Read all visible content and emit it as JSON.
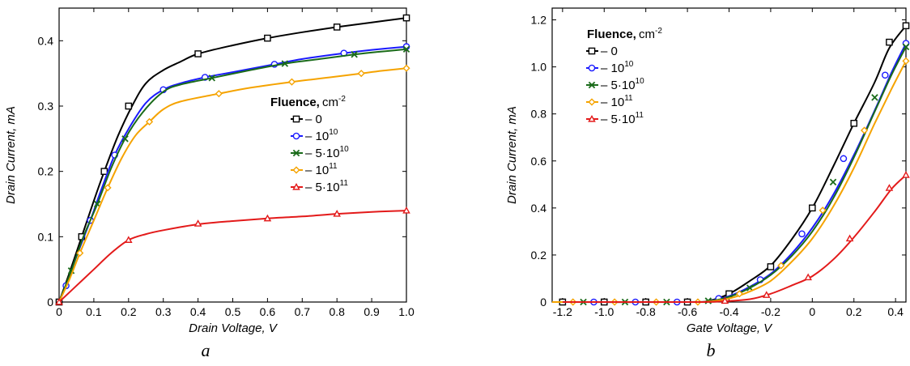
{
  "legend": {
    "title": "Fluence,",
    "unit": "cm",
    "unit_sup": "-2",
    "entries": [
      {
        "base": "– 0",
        "sup": "",
        "color": "#000000",
        "marker": "square"
      },
      {
        "base": "– 10",
        "sup": "10",
        "color": "#1a1aff",
        "marker": "circle"
      },
      {
        "base": "– 5·10",
        "sup": "10",
        "color": "#1a6b1a",
        "marker": "cross"
      },
      {
        "base": "– 10",
        "sup": "11",
        "color": "#f5a300",
        "marker": "diamond"
      },
      {
        "base": "– 5·10",
        "sup": "11",
        "color": "#e31a1a",
        "marker": "triangle"
      }
    ]
  },
  "chart_data": [
    {
      "type": "line",
      "panel_label": "a",
      "xlabel": "Drain Voltage, V",
      "ylabel": "Drain Current, mA",
      "xlim": [
        0,
        1.0
      ],
      "ylim": [
        0,
        0.45
      ],
      "xticks": [
        0,
        0.1,
        0.2,
        0.3,
        0.4,
        0.5,
        0.6,
        0.7,
        0.8,
        0.9,
        1.0
      ],
      "xtick_labels": [
        "0",
        "0.1",
        "0.2",
        "0.3",
        "0.4",
        "0.5",
        "0.6",
        "0.7",
        "0.8",
        "0.9",
        "1.0"
      ],
      "yticks": [
        0,
        0.1,
        0.2,
        0.3,
        0.4
      ],
      "ytick_labels": [
        "0",
        "0.1",
        "0.2",
        "0.3",
        "0.4"
      ],
      "legend_position": "right-middle",
      "series": [
        {
          "color": "#000000",
          "marker": "square",
          "curve": [
            [
              0,
              0
            ],
            [
              0.03,
              0.045
            ],
            [
              0.065,
              0.1
            ],
            [
              0.1,
              0.155
            ],
            [
              0.13,
              0.2
            ],
            [
              0.17,
              0.255
            ],
            [
              0.21,
              0.3
            ],
            [
              0.25,
              0.335
            ],
            [
              0.3,
              0.355
            ],
            [
              0.35,
              0.368
            ],
            [
              0.4,
              0.38
            ],
            [
              0.5,
              0.393
            ],
            [
              0.6,
              0.404
            ],
            [
              0.7,
              0.413
            ],
            [
              0.8,
              0.421
            ],
            [
              0.9,
              0.428
            ],
            [
              1.0,
              0.435
            ]
          ],
          "markers": [
            [
              0,
              0
            ],
            [
              0.065,
              0.1
            ],
            [
              0.13,
              0.2
            ],
            [
              0.2,
              0.3
            ],
            [
              0.4,
              0.38
            ],
            [
              0.6,
              0.404
            ],
            [
              0.8,
              0.421
            ],
            [
              1.0,
              0.435
            ]
          ]
        },
        {
          "color": "#1a1aff",
          "marker": "circle",
          "curve": [
            [
              0,
              0
            ],
            [
              0.02,
              0.025
            ],
            [
              0.05,
              0.07
            ],
            [
              0.09,
              0.125
            ],
            [
              0.12,
              0.17
            ],
            [
              0.16,
              0.225
            ],
            [
              0.2,
              0.265
            ],
            [
              0.25,
              0.305
            ],
            [
              0.3,
              0.325
            ],
            [
              0.35,
              0.335
            ],
            [
              0.42,
              0.344
            ],
            [
              0.5,
              0.352
            ],
            [
              0.62,
              0.364
            ],
            [
              0.7,
              0.372
            ],
            [
              0.82,
              0.381
            ],
            [
              0.9,
              0.386
            ],
            [
              1.0,
              0.391
            ]
          ],
          "markers": [
            [
              0.02,
              0.025
            ],
            [
              0.09,
              0.125
            ],
            [
              0.16,
              0.225
            ],
            [
              0.3,
              0.325
            ],
            [
              0.42,
              0.344
            ],
            [
              0.62,
              0.364
            ],
            [
              0.82,
              0.381
            ],
            [
              1.0,
              0.391
            ]
          ]
        },
        {
          "color": "#1a6b1a",
          "marker": "cross",
          "curve": [
            [
              0,
              0
            ],
            [
              0.035,
              0.048
            ],
            [
              0.07,
              0.1
            ],
            [
              0.11,
              0.15
            ],
            [
              0.15,
              0.205
            ],
            [
              0.19,
              0.25
            ],
            [
              0.24,
              0.29
            ],
            [
              0.3,
              0.322
            ],
            [
              0.35,
              0.333
            ],
            [
              0.44,
              0.343
            ],
            [
              0.55,
              0.355
            ],
            [
              0.65,
              0.365
            ],
            [
              0.75,
              0.372
            ],
            [
              0.85,
              0.379
            ],
            [
              0.92,
              0.383
            ],
            [
              1.0,
              0.387
            ]
          ],
          "markers": [
            [
              0.035,
              0.048
            ],
            [
              0.11,
              0.15
            ],
            [
              0.19,
              0.25
            ],
            [
              0.44,
              0.343
            ],
            [
              0.65,
              0.365
            ],
            [
              0.85,
              0.379
            ],
            [
              1.0,
              0.387
            ]
          ]
        },
        {
          "color": "#f5a300",
          "marker": "diamond",
          "curve": [
            [
              0,
              0
            ],
            [
              0.03,
              0.035
            ],
            [
              0.06,
              0.075
            ],
            [
              0.1,
              0.125
            ],
            [
              0.14,
              0.175
            ],
            [
              0.18,
              0.22
            ],
            [
              0.22,
              0.255
            ],
            [
              0.26,
              0.276
            ],
            [
              0.3,
              0.295
            ],
            [
              0.35,
              0.307
            ],
            [
              0.46,
              0.319
            ],
            [
              0.55,
              0.328
            ],
            [
              0.67,
              0.337
            ],
            [
              0.78,
              0.344
            ],
            [
              0.87,
              0.35
            ],
            [
              0.93,
              0.354
            ],
            [
              1.0,
              0.358
            ]
          ],
          "markers": [
            [
              0.06,
              0.075
            ],
            [
              0.14,
              0.175
            ],
            [
              0.26,
              0.276
            ],
            [
              0.46,
              0.319
            ],
            [
              0.67,
              0.337
            ],
            [
              0.87,
              0.35
            ],
            [
              1.0,
              0.358
            ]
          ]
        },
        {
          "color": "#e31a1a",
          "marker": "triangle",
          "curve": [
            [
              0,
              0
            ],
            [
              0.05,
              0.025
            ],
            [
              0.1,
              0.05
            ],
            [
              0.15,
              0.075
            ],
            [
              0.2,
              0.095
            ],
            [
              0.25,
              0.104
            ],
            [
              0.3,
              0.11
            ],
            [
              0.4,
              0.119
            ],
            [
              0.5,
              0.124
            ],
            [
              0.6,
              0.128
            ],
            [
              0.7,
              0.131
            ],
            [
              0.8,
              0.135
            ],
            [
              0.9,
              0.138
            ],
            [
              1.0,
              0.14
            ]
          ],
          "markers": [
            [
              0,
              0
            ],
            [
              0.2,
              0.095
            ],
            [
              0.4,
              0.12
            ],
            [
              0.6,
              0.128
            ],
            [
              0.8,
              0.135
            ],
            [
              1.0,
              0.14
            ]
          ]
        }
      ]
    },
    {
      "type": "line",
      "panel_label": "b",
      "xlabel": "Gate Voltage, V",
      "ylabel": "Drain Current, mA",
      "xlim": [
        -1.25,
        0.45
      ],
      "ylim": [
        0,
        1.25
      ],
      "xticks": [
        -1.2,
        -1.0,
        -0.8,
        -0.6,
        -0.4,
        -0.2,
        0,
        0.2,
        0.4
      ],
      "xtick_labels": [
        "-1.2",
        "-1.0",
        "-0.8",
        "-0.6",
        "-0.4",
        "-0.2",
        "0",
        "0.2",
        "0.4"
      ],
      "yticks": [
        0,
        0.2,
        0.4,
        0.6,
        0.8,
        1.0,
        1.2
      ],
      "ytick_labels": [
        "0",
        "0.2",
        "0.4",
        "0.6",
        "0.8",
        "1.0",
        "1.2"
      ],
      "legend_position": "top-left",
      "series": [
        {
          "color": "#000000",
          "marker": "square",
          "curve": [
            [
              -1.2,
              0
            ],
            [
              -0.6,
              0
            ],
            [
              -0.5,
              0.005
            ],
            [
              -0.4,
              0.035
            ],
            [
              -0.3,
              0.09
            ],
            [
              -0.2,
              0.155
            ],
            [
              -0.1,
              0.265
            ],
            [
              0,
              0.4
            ],
            [
              0.1,
              0.575
            ],
            [
              0.2,
              0.76
            ],
            [
              0.3,
              0.935
            ],
            [
              0.37,
              1.08
            ],
            [
              0.45,
              1.175
            ]
          ],
          "markers": [
            [
              -1.2,
              0
            ],
            [
              -1.0,
              0
            ],
            [
              -0.8,
              0
            ],
            [
              -0.6,
              0
            ],
            [
              -0.4,
              0.035
            ],
            [
              -0.2,
              0.15
            ],
            [
              0,
              0.4
            ],
            [
              0.2,
              0.76
            ],
            [
              0.37,
              1.105
            ],
            [
              0.45,
              1.175
            ]
          ]
        },
        {
          "color": "#1a1aff",
          "marker": "circle",
          "curve": [
            [
              -1.25,
              0
            ],
            [
              -0.6,
              0
            ],
            [
              -0.5,
              0.003
            ],
            [
              -0.4,
              0.025
            ],
            [
              -0.3,
              0.065
            ],
            [
              -0.2,
              0.12
            ],
            [
              -0.1,
              0.205
            ],
            [
              0,
              0.315
            ],
            [
              0.1,
              0.455
            ],
            [
              0.2,
              0.625
            ],
            [
              0.3,
              0.815
            ],
            [
              0.38,
              0.975
            ],
            [
              0.45,
              1.1
            ]
          ],
          "markers": [
            [
              -1.05,
              0
            ],
            [
              -0.85,
              0
            ],
            [
              -0.65,
              0
            ],
            [
              -0.45,
              0.015
            ],
            [
              -0.25,
              0.095
            ],
            [
              -0.05,
              0.29
            ],
            [
              0.15,
              0.61
            ],
            [
              0.35,
              0.965
            ],
            [
              0.45,
              1.1
            ]
          ]
        },
        {
          "color": "#1a6b1a",
          "marker": "cross",
          "curve": [
            [
              -1.25,
              0
            ],
            [
              -0.6,
              0
            ],
            [
              -0.5,
              0.003
            ],
            [
              -0.4,
              0.022
            ],
            [
              -0.3,
              0.06
            ],
            [
              -0.2,
              0.115
            ],
            [
              -0.1,
              0.195
            ],
            [
              0,
              0.3
            ],
            [
              0.1,
              0.44
            ],
            [
              0.2,
              0.615
            ],
            [
              0.3,
              0.81
            ],
            [
              0.38,
              0.965
            ],
            [
              0.45,
              1.085
            ]
          ],
          "markers": [
            [
              -1.1,
              0
            ],
            [
              -0.9,
              0
            ],
            [
              -0.7,
              0
            ],
            [
              -0.5,
              0.005
            ],
            [
              -0.3,
              0.06
            ],
            [
              0.1,
              0.51
            ],
            [
              0.3,
              0.87
            ],
            [
              0.45,
              1.085
            ]
          ]
        },
        {
          "color": "#f5a300",
          "marker": "diamond",
          "curve": [
            [
              -1.25,
              0
            ],
            [
              -0.6,
              0
            ],
            [
              -0.5,
              0.002
            ],
            [
              -0.4,
              0.015
            ],
            [
              -0.3,
              0.045
            ],
            [
              -0.2,
              0.09
            ],
            [
              -0.1,
              0.17
            ],
            [
              0,
              0.27
            ],
            [
              0.1,
              0.405
            ],
            [
              0.2,
              0.57
            ],
            [
              0.3,
              0.76
            ],
            [
              0.38,
              0.905
            ],
            [
              0.45,
              1.025
            ]
          ],
          "markers": [
            [
              -1.15,
              0
            ],
            [
              -0.95,
              0
            ],
            [
              -0.75,
              0
            ],
            [
              -0.55,
              0
            ],
            [
              -0.35,
              0.035
            ],
            [
              -0.15,
              0.155
            ],
            [
              0.05,
              0.39
            ],
            [
              0.25,
              0.73
            ],
            [
              0.45,
              1.025
            ]
          ]
        },
        {
          "color": "#e31a1a",
          "marker": "triangle",
          "curve": [
            [
              -1.2,
              0
            ],
            [
              -0.6,
              0
            ],
            [
              -0.45,
              0.002
            ],
            [
              -0.3,
              0.012
            ],
            [
              -0.2,
              0.035
            ],
            [
              -0.1,
              0.07
            ],
            [
              0,
              0.11
            ],
            [
              0.1,
              0.18
            ],
            [
              0.2,
              0.275
            ],
            [
              0.3,
              0.385
            ],
            [
              0.38,
              0.48
            ],
            [
              0.45,
              0.54
            ]
          ],
          "markers": [
            [
              -0.42,
              0.005
            ],
            [
              -0.22,
              0.03
            ],
            [
              -0.02,
              0.105
            ],
            [
              0.18,
              0.27
            ],
            [
              0.37,
              0.485
            ],
            [
              0.45,
              0.54
            ]
          ]
        }
      ]
    }
  ]
}
